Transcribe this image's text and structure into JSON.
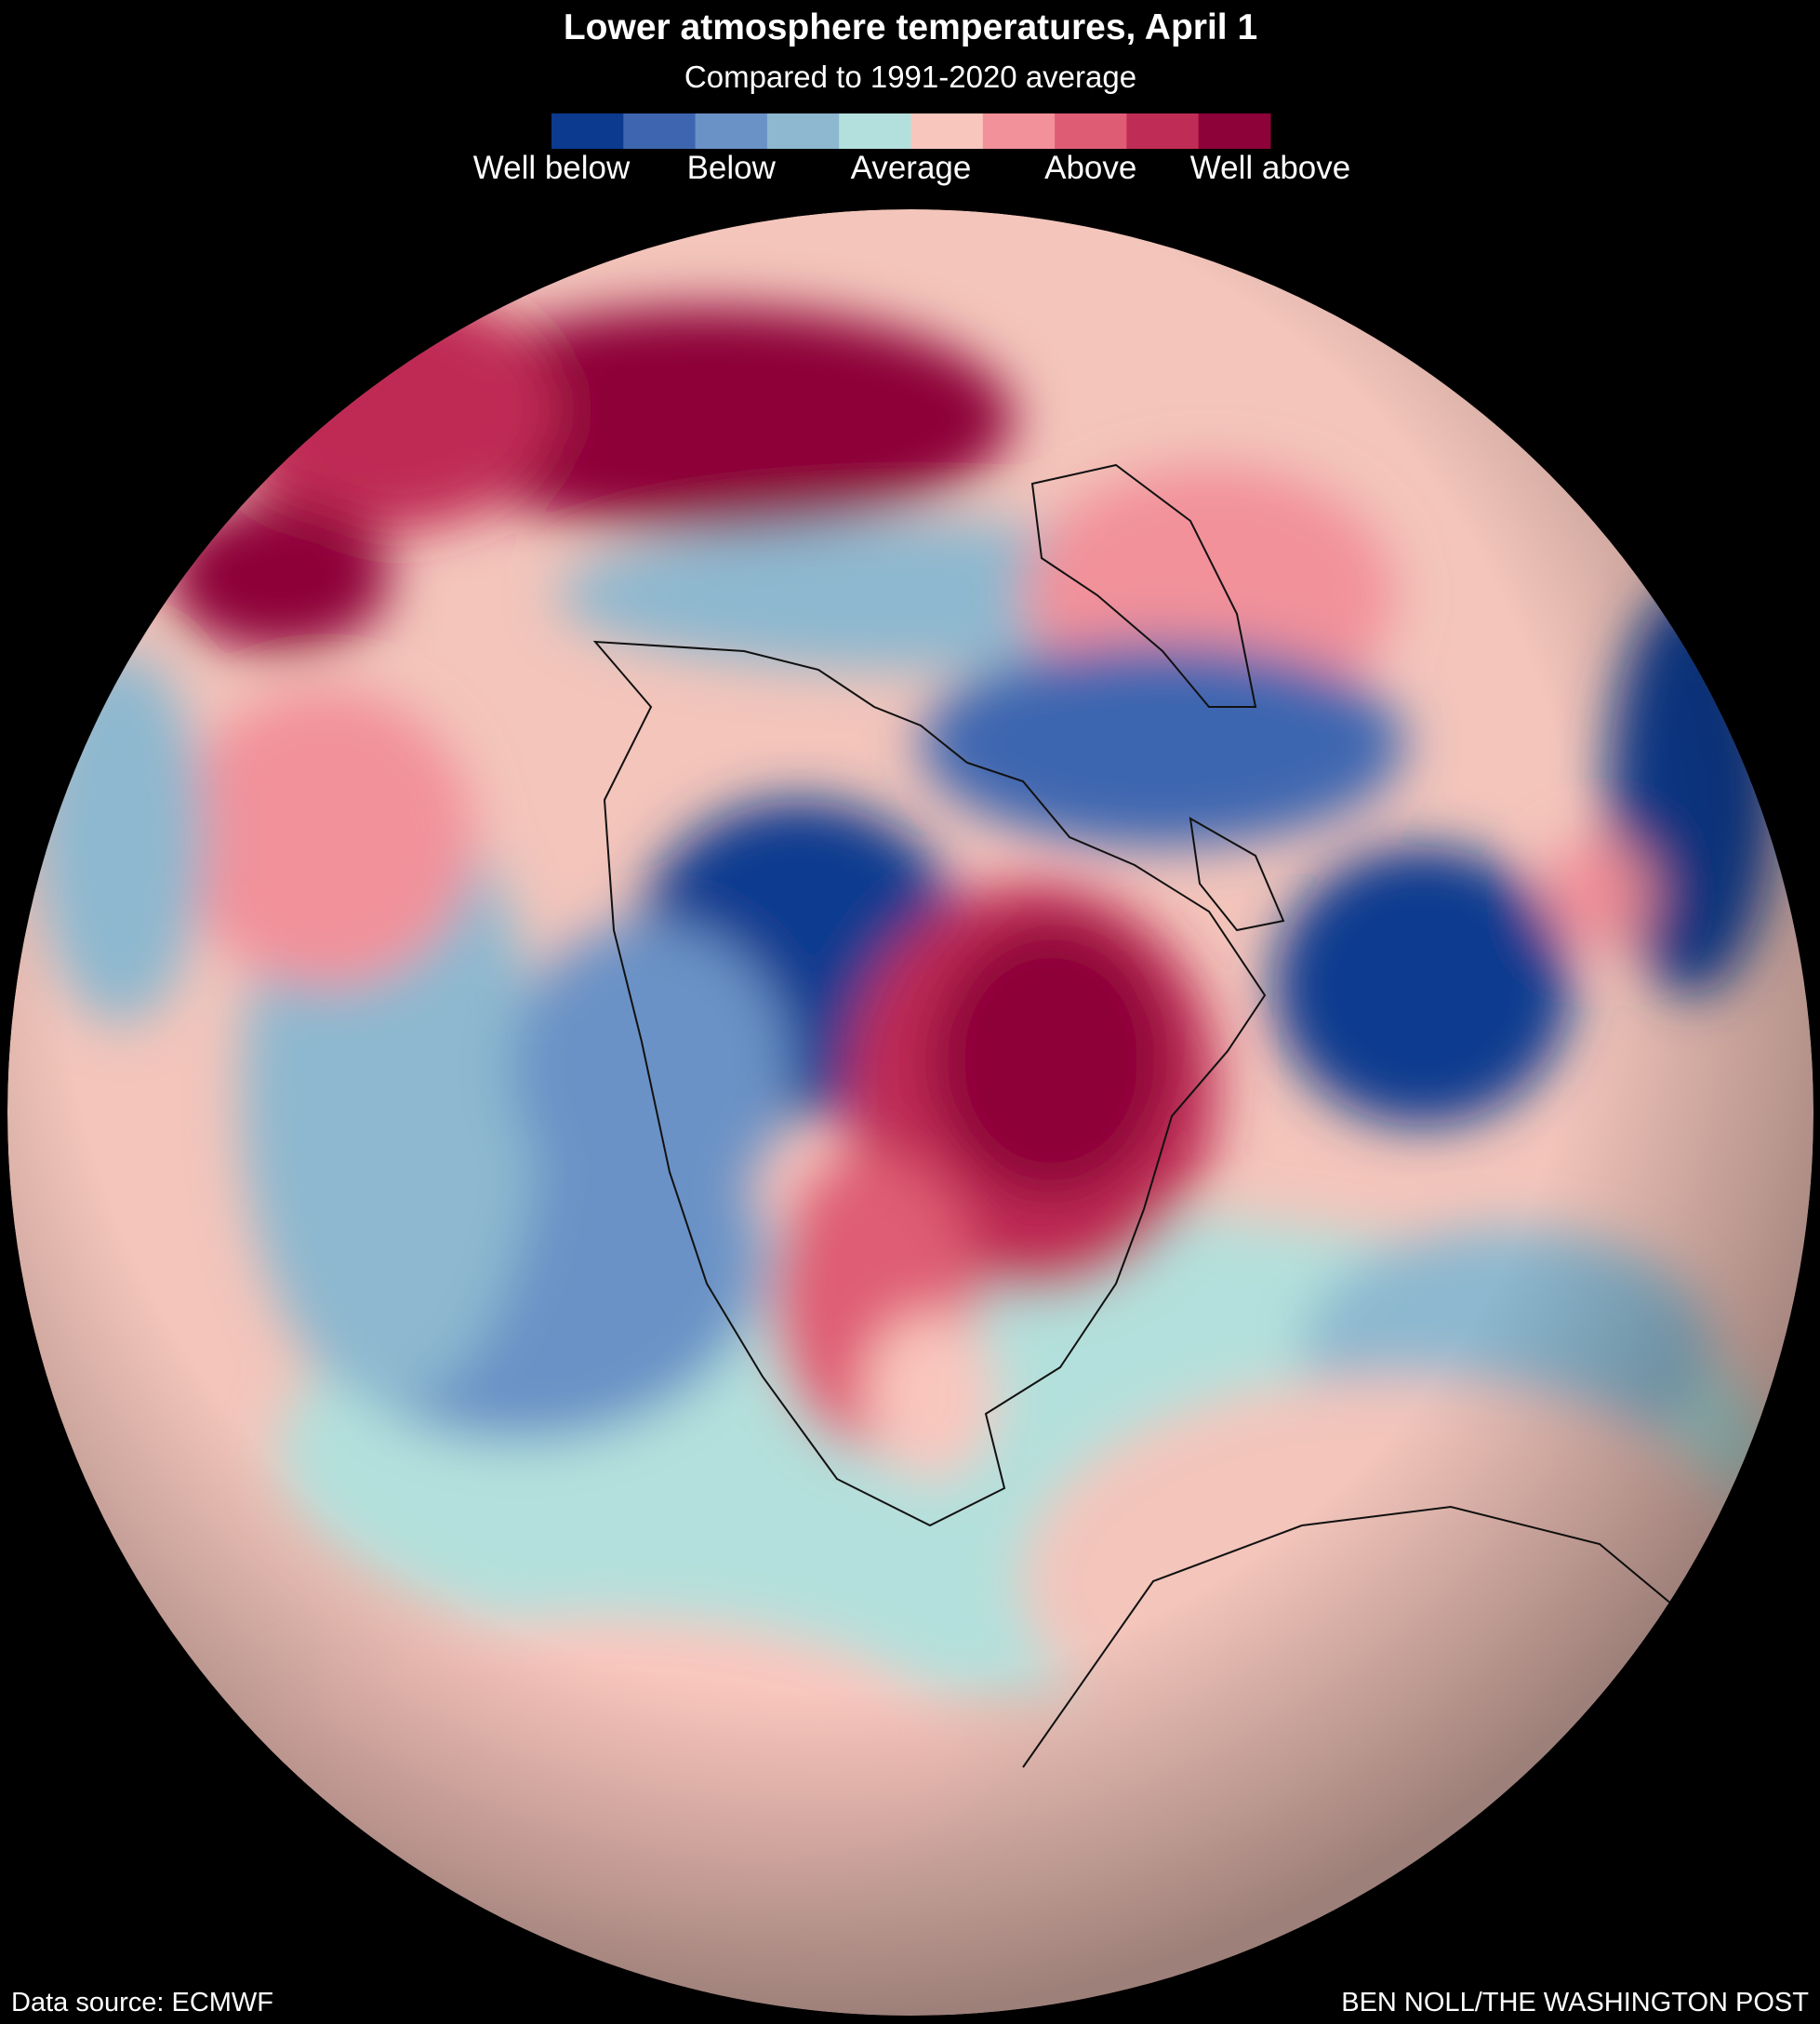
{
  "header": {
    "title": "Lower atmosphere temperatures, April 1",
    "subtitle": "Compared to 1991-2020 average"
  },
  "legend": {
    "colors": [
      "#0b3a8f",
      "#3e66b0",
      "#6b92c6",
      "#8db8cf",
      "#b3e0dc",
      "#f9c6bd",
      "#f2919a",
      "#df5d74",
      "#bf2c55",
      "#8d0339"
    ],
    "labels": [
      "Well below",
      "Below",
      "Average",
      "Above",
      "Well above"
    ]
  },
  "footer": {
    "source": "Data source: ECMWF",
    "credit": "BEN NOLL/THE WASHINGTON POST"
  }
}
